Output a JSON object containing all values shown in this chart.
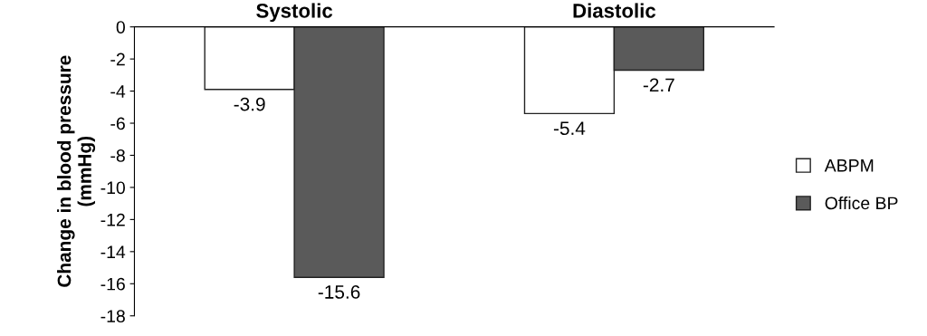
{
  "chart_data": {
    "type": "bar",
    "ylabel": "Change in blood pressure\n(mmHg)",
    "categories": [
      "Systolic",
      "Diastolic"
    ],
    "series": [
      {
        "name": "ABPM",
        "color": "#ffffff",
        "values": [
          -3.9,
          -5.4
        ]
      },
      {
        "name": "Office BP",
        "color": "#5a5a5a",
        "values": [
          -15.6,
          -2.7
        ]
      }
    ],
    "ylim": [
      -18,
      0
    ],
    "yticks": [
      0,
      -2,
      -4,
      -6,
      -8,
      -10,
      -12,
      -14,
      -16,
      -18
    ],
    "grid": false,
    "legend": "right",
    "data_labels": true
  }
}
